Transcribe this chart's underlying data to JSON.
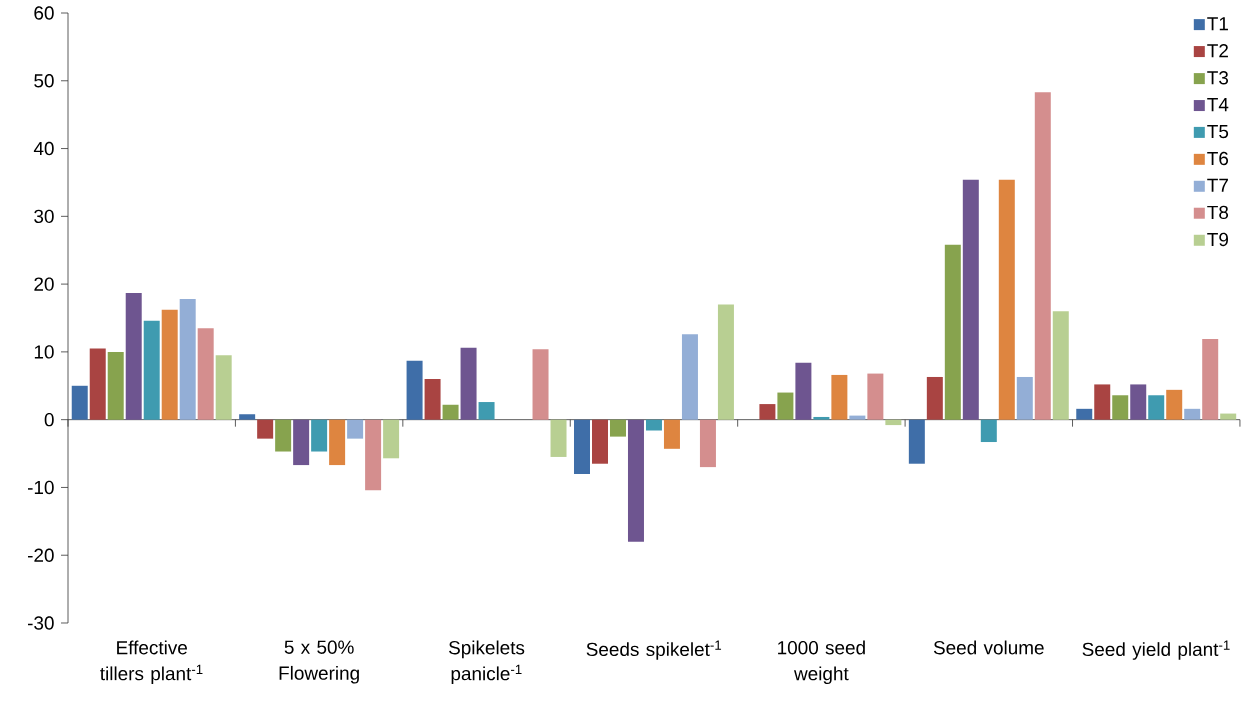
{
  "chart_data": {
    "type": "bar",
    "categories": [
      "Effective tillers plant$^{-1}$",
      "5 x 50% Flowering",
      "Spikelets panicle$^{-1}$",
      "Seeds spikelet$^{-1}$",
      "1000 seed weight",
      "Seed volume",
      "Seed yield plant$^{-1}$"
    ],
    "series": [
      {
        "name": "T1",
        "color": "#3f6ea8",
        "values": [
          5,
          0.8,
          8.7,
          -8,
          0,
          -6.5,
          1.6
        ]
      },
      {
        "name": "T2",
        "color": "#a94442",
        "values": [
          10.5,
          -2.8,
          6,
          -6.5,
          2.3,
          6.3,
          5.2
        ]
      },
      {
        "name": "T3",
        "color": "#87a34e",
        "values": [
          10,
          -4.7,
          2.2,
          -2.5,
          4,
          25.8,
          3.6
        ]
      },
      {
        "name": "T4",
        "color": "#6e5590",
        "values": [
          18.7,
          -6.7,
          10.6,
          -18,
          8.4,
          35.4,
          5.2
        ]
      },
      {
        "name": "T5",
        "color": "#3f9bb0",
        "values": [
          14.6,
          -4.7,
          2.6,
          -1.6,
          0.4,
          -3.3,
          3.6
        ]
      },
      {
        "name": "T6",
        "color": "#de8540",
        "values": [
          16.2,
          -6.7,
          0,
          -4.3,
          6.6,
          35.4,
          4.4
        ]
      },
      {
        "name": "T7",
        "color": "#93aed6",
        "values": [
          17.8,
          -2.8,
          0,
          12.6,
          0.6,
          6.3,
          1.6
        ]
      },
      {
        "name": "T8",
        "color": "#d48e8e",
        "values": [
          13.5,
          -10.4,
          10.4,
          -7,
          6.8,
          48.3,
          11.9
        ]
      },
      {
        "name": "T9",
        "color": "#b8cf92",
        "values": [
          9.5,
          -5.7,
          -5.5,
          17,
          -0.8,
          16,
          0.9
        ]
      }
    ],
    "ylim": [
      -30,
      60
    ],
    "yticks": [
      -30,
      -20,
      -10,
      0,
      10,
      20,
      30,
      40,
      50,
      60
    ],
    "legend": "top right"
  }
}
